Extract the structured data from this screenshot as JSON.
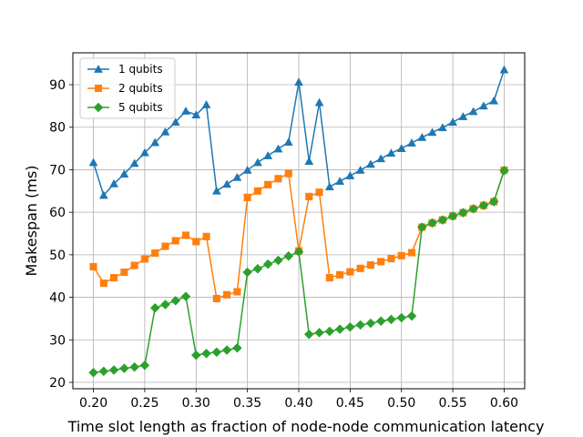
{
  "chart_data": {
    "type": "line",
    "xlabel": "Time slot length as fraction of node-node communication latency",
    "ylabel": "Makespan (ms)",
    "xlim": [
      0.18,
      0.62
    ],
    "ylim": [
      18.5,
      97.5
    ],
    "xticks": [
      0.2,
      0.25,
      0.3,
      0.35,
      0.4,
      0.45,
      0.5,
      0.55,
      0.6
    ],
    "xtick_labels": [
      "0.20",
      "0.25",
      "0.30",
      "0.35",
      "0.40",
      "0.45",
      "0.50",
      "0.55",
      "0.60"
    ],
    "yticks": [
      20,
      30,
      40,
      50,
      60,
      70,
      80,
      90
    ],
    "ytick_labels": [
      "20",
      "30",
      "40",
      "50",
      "60",
      "70",
      "80",
      "90"
    ],
    "grid": true,
    "legend_position": "top-left",
    "x": [
      0.2,
      0.21,
      0.22,
      0.23,
      0.24,
      0.25,
      0.26,
      0.27,
      0.28,
      0.29,
      0.3,
      0.31,
      0.32,
      0.33,
      0.34,
      0.35,
      0.36,
      0.37,
      0.38,
      0.39,
      0.4,
      0.41,
      0.42,
      0.43,
      0.44,
      0.45,
      0.46,
      0.47,
      0.48,
      0.49,
      0.5,
      0.51,
      0.52,
      0.53,
      0.54,
      0.55,
      0.56,
      0.57,
      0.58,
      0.59,
      0.6
    ],
    "series": [
      {
        "name": "1 qubits",
        "color": "#1f77b4",
        "marker": "triangle",
        "values": [
          71.7,
          64.0,
          66.7,
          69.0,
          71.5,
          74.0,
          76.4,
          78.9,
          81.2,
          83.8,
          82.9,
          85.3,
          65.0,
          66.6,
          68.2,
          69.9,
          71.7,
          73.3,
          74.9,
          76.5,
          90.6,
          72.0,
          85.8,
          66.0,
          67.3,
          68.6,
          69.9,
          71.3,
          72.6,
          73.9,
          75.0,
          76.3,
          77.6,
          78.8,
          79.9,
          81.2,
          82.5,
          83.7,
          85.0,
          86.2,
          93.5
        ]
      },
      {
        "name": "2 qubits",
        "color": "#ff7f0e",
        "marker": "square",
        "values": [
          47.2,
          43.3,
          44.6,
          45.9,
          47.5,
          49.0,
          50.4,
          52.0,
          53.3,
          54.6,
          53.1,
          54.3,
          39.7,
          40.6,
          41.3,
          63.5,
          65.0,
          66.5,
          67.9,
          69.1,
          50.9,
          63.7,
          64.7,
          44.6,
          45.3,
          46.0,
          46.8,
          47.6,
          48.4,
          49.1,
          49.8,
          50.5,
          56.5,
          57.5,
          58.2,
          59.1,
          59.9,
          60.8,
          61.6,
          62.5,
          69.9
        ]
      },
      {
        "name": "5 qubits",
        "color": "#2ca02c",
        "marker": "diamond",
        "values": [
          22.3,
          22.6,
          22.9,
          23.3,
          23.6,
          24.0,
          37.5,
          38.3,
          39.2,
          40.2,
          26.4,
          26.8,
          27.1,
          27.6,
          28.1,
          45.9,
          46.7,
          47.8,
          48.7,
          49.7,
          50.7,
          31.3,
          31.7,
          32.0,
          32.5,
          33.0,
          33.5,
          33.9,
          34.4,
          34.8,
          35.2,
          35.6,
          56.5,
          57.5,
          58.2,
          59.1,
          59.9,
          60.8,
          61.6,
          62.5,
          69.8
        ]
      }
    ]
  }
}
